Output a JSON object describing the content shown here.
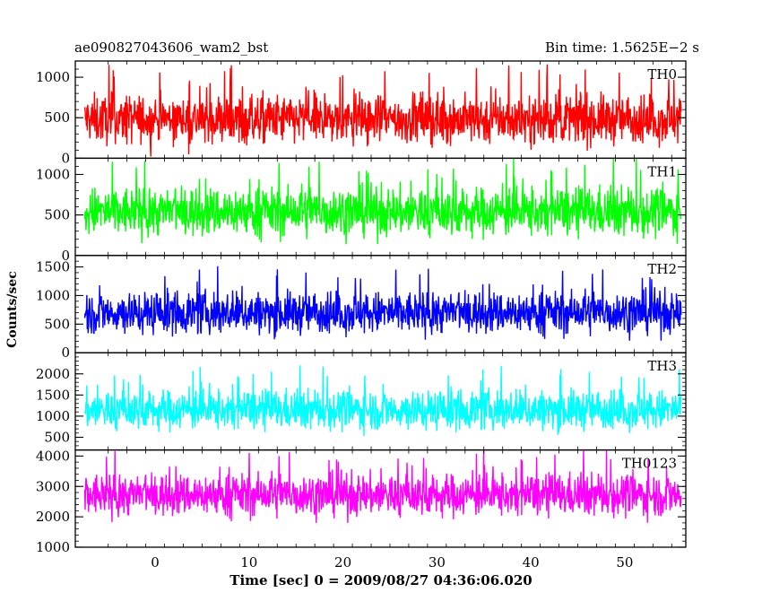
{
  "header": {
    "title": "ae090827043606_wam2_bst",
    "bin_time": "Bin time: 1.5625E−2 s"
  },
  "chart_data": {
    "type": "line",
    "xlabel": "Time [sec] 0 = 2009/08/27 04:36:06.020",
    "ylabel": "Counts/sec",
    "xlim": [
      -8.5,
      56.5
    ],
    "x_range": [
      -7.5,
      56
    ],
    "x_ticks": [
      0,
      10,
      20,
      30,
      40,
      50
    ],
    "panels": [
      {
        "name": "TH0",
        "color": "#ff0000",
        "ylim": [
          0,
          1200
        ],
        "y_ticks": [
          0,
          500,
          1000
        ],
        "mean": 480,
        "spread": 270,
        "min": 20,
        "max": 1200
      },
      {
        "name": "TH1",
        "color": "#00ff00",
        "ylim": [
          0,
          1200
        ],
        "y_ticks": [
          0,
          500,
          1000
        ],
        "mean": 540,
        "spread": 270,
        "min": 20,
        "max": 1200
      },
      {
        "name": "TH2",
        "color": "#0000ff",
        "ylim": [
          0,
          1700
        ],
        "y_ticks": [
          0,
          500,
          1000,
          1500
        ],
        "mean": 700,
        "spread": 330,
        "min": 60,
        "max": 1700
      },
      {
        "name": "TH3",
        "color": "#00ffff",
        "ylim": [
          200,
          2500
        ],
        "y_ticks": [
          500,
          1000,
          1500,
          2000
        ],
        "mean": 1150,
        "spread": 420,
        "min": 260,
        "max": 2500
      },
      {
        "name": "TH0123",
        "color": "#ff00ff",
        "ylim": [
          1000,
          4200
        ],
        "y_ticks": [
          1000,
          2000,
          3000,
          4000
        ],
        "mean": 2720,
        "spread": 620,
        "min": 1000,
        "max": 4200
      }
    ]
  }
}
